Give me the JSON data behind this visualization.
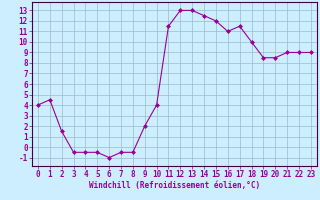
{
  "x": [
    0,
    1,
    2,
    3,
    4,
    5,
    6,
    7,
    8,
    9,
    10,
    11,
    12,
    13,
    14,
    15,
    16,
    17,
    18,
    19,
    20,
    21,
    22,
    23
  ],
  "y": [
    4.0,
    4.5,
    1.5,
    -0.5,
    -0.5,
    -0.5,
    -1.0,
    -0.5,
    -0.5,
    2.0,
    4.0,
    11.5,
    13.0,
    13.0,
    12.5,
    12.0,
    11.0,
    11.5,
    10.0,
    8.5,
    8.5,
    9.0,
    9.0,
    9.0
  ],
  "line_color": "#990099",
  "marker": "D",
  "marker_size": 2.0,
  "bg_color": "#cceeff",
  "grid_color": "#99bbcc",
  "xlabel": "Windchill (Refroidissement éolien,°C)",
  "xlabel_fontsize": 5.5,
  "tick_fontsize": 5.5,
  "ylim": [
    -1.8,
    13.8
  ],
  "xlim": [
    -0.5,
    23.5
  ],
  "yticks": [
    -1,
    0,
    1,
    2,
    3,
    4,
    5,
    6,
    7,
    8,
    9,
    10,
    11,
    12,
    13
  ],
  "xticks": [
    0,
    1,
    2,
    3,
    4,
    5,
    6,
    7,
    8,
    9,
    10,
    11,
    12,
    13,
    14,
    15,
    16,
    17,
    18,
    19,
    20,
    21,
    22,
    23
  ],
  "spine_color": "#990099",
  "border_color": "#440044"
}
